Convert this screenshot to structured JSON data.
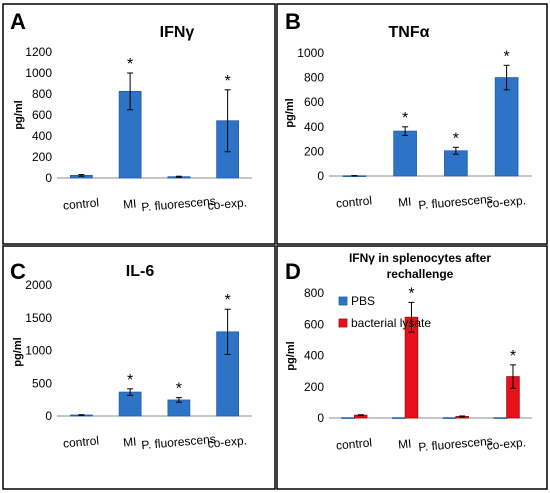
{
  "chart_data": [
    {
      "panel": "A",
      "type": "bar",
      "title": "IFNγ",
      "ylabel": "pg/ml",
      "xlabel": "",
      "categories": [
        "control",
        "MI",
        "P. fluorescens",
        "co-exp."
      ],
      "ylim": [
        0,
        1200
      ],
      "yticks": [
        0,
        200,
        400,
        600,
        800,
        1000,
        1200
      ],
      "series": [
        {
          "values": [
            25,
            825,
            12,
            545
          ],
          "errors": [
            8,
            175,
            5,
            295
          ],
          "color": "#2d74c6"
        }
      ],
      "significance": [
        "",
        "*",
        "",
        "*"
      ]
    },
    {
      "panel": "B",
      "type": "bar",
      "title": "TNFα",
      "ylabel": "pg/ml",
      "xlabel": "",
      "categories": [
        "control",
        "MI",
        "P. fluorescens",
        "co-exp."
      ],
      "ylim": [
        0,
        1000
      ],
      "yticks": [
        0,
        200,
        400,
        600,
        800,
        1000
      ],
      "series": [
        {
          "values": [
            2,
            365,
            205,
            800
          ],
          "errors": [
            1,
            35,
            28,
            100
          ],
          "color": "#2d74c6"
        }
      ],
      "significance": [
        "",
        "*",
        "*",
        "*"
      ]
    },
    {
      "panel": "C",
      "type": "bar",
      "title": "IL-6",
      "ylabel": "pg/ml",
      "xlabel": "",
      "categories": [
        "control",
        "MI",
        "P. fluorescens",
        "co-exp."
      ],
      "ylim": [
        0,
        2000
      ],
      "yticks": [
        0,
        500,
        1000,
        1500,
        2000
      ],
      "series": [
        {
          "values": [
            15,
            365,
            245,
            1285
          ],
          "errors": [
            5,
            50,
            35,
            345
          ],
          "color": "#2d74c6"
        }
      ],
      "significance": [
        "",
        "*",
        "*",
        "*"
      ]
    },
    {
      "panel": "D",
      "type": "bar",
      "title": "IFNγ in splenocytes after rechallenge",
      "ylabel": "pg/ml",
      "xlabel": "",
      "categories": [
        "control",
        "MI",
        "P. fluorescens",
        "co-exp."
      ],
      "ylim": [
        0,
        800
      ],
      "yticks": [
        0,
        200,
        400,
        600,
        800
      ],
      "legend_position": "top-left",
      "series": [
        {
          "name": "PBS",
          "values": [
            2,
            2,
            2,
            2
          ],
          "errors": [
            0,
            0,
            0,
            0
          ],
          "color": "#2d74c6"
        },
        {
          "name": "bacterial lysate",
          "values": [
            18,
            645,
            10,
            265
          ],
          "errors": [
            3,
            95,
            3,
            75
          ],
          "color": "#e8101a"
        }
      ],
      "significance": [
        "",
        "*",
        "",
        "*"
      ]
    }
  ],
  "colors": {
    "blue": "#2d74c6",
    "red": "#e8101a",
    "frame": "#000000"
  }
}
